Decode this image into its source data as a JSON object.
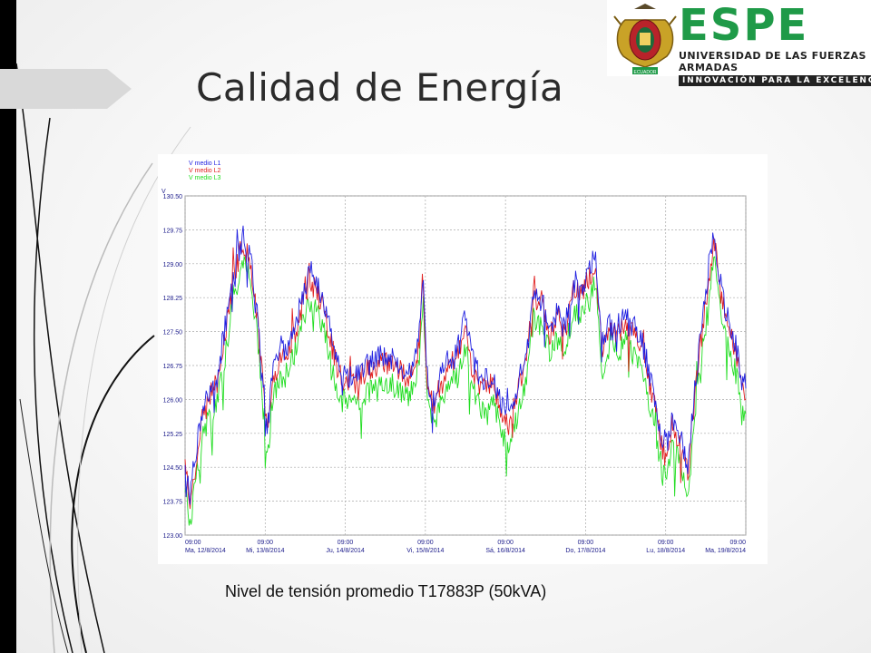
{
  "slide": {
    "title": "Calidad de Energía",
    "caption": "Nivel de tensión promedio T17883P (50kVA)"
  },
  "logo": {
    "word": "ESPE",
    "line1": "UNIVERSIDAD DE LAS FUERZAS ARMADAS",
    "line2": "INNOVACIÓN PARA LA EXCELENCIA",
    "emblem_text": "ECUADOR",
    "brand_color": "#1f9a48"
  },
  "chart_data": {
    "type": "line",
    "ylabel": "V",
    "ylim": [
      123.0,
      130.5
    ],
    "yticks": [
      "130.50",
      "129.75",
      "129.00",
      "128.25",
      "127.50",
      "126.75",
      "126.00",
      "125.25",
      "124.50",
      "123.75",
      "123.00"
    ],
    "xticks": [
      {
        "time": "09:00",
        "date": "Ma, 12/8/2014"
      },
      {
        "time": "09:00",
        "date": "Mi, 13/8/2014"
      },
      {
        "time": "09:00",
        "date": "Ju, 14/8/2014"
      },
      {
        "time": "09:00",
        "date": "Vi, 15/8/2014"
      },
      {
        "time": "09:00",
        "date": "Sá, 16/8/2014"
      },
      {
        "time": "09:00",
        "date": "Do, 17/8/2014"
      },
      {
        "time": "09:00",
        "date": "Lu, 18/8/2014"
      },
      {
        "time": "09:00",
        "date": "Ma, 19/8/2014"
      }
    ],
    "grid": true,
    "legend_position": "top-left",
    "series": [
      {
        "name": "V medio L1",
        "color": "#1f1fe0",
        "offset": 0.0
      },
      {
        "name": "V medio L2",
        "color": "#e02020",
        "offset": -0.15
      },
      {
        "name": "V medio L3",
        "color": "#22dd22",
        "offset": -0.6
      }
    ],
    "profile": [
      [
        0.0,
        124.8
      ],
      [
        0.06,
        123.9
      ],
      [
        0.12,
        124.6
      ],
      [
        0.2,
        125.6
      ],
      [
        0.3,
        126.2
      ],
      [
        0.4,
        126.5
      ],
      [
        0.5,
        127.6
      ],
      [
        0.6,
        128.8
      ],
      [
        0.72,
        129.6
      ],
      [
        0.82,
        129.2
      ],
      [
        0.9,
        128.0
      ],
      [
        0.98,
        126.3
      ],
      [
        1.03,
        125.3
      ],
      [
        1.08,
        126.4
      ],
      [
        1.15,
        126.9
      ],
      [
        1.25,
        127.1
      ],
      [
        1.4,
        127.8
      ],
      [
        1.55,
        128.8
      ],
      [
        1.65,
        128.5
      ],
      [
        1.75,
        128.0
      ],
      [
        1.85,
        127.2
      ],
      [
        1.95,
        126.6
      ],
      [
        2.1,
        126.5
      ],
      [
        2.3,
        126.8
      ],
      [
        2.45,
        127.0
      ],
      [
        2.6,
        126.9
      ],
      [
        2.8,
        126.6
      ],
      [
        2.92,
        127.3
      ],
      [
        2.97,
        128.9
      ],
      [
        3.02,
        126.5
      ],
      [
        3.1,
        126.0
      ],
      [
        3.25,
        126.8
      ],
      [
        3.4,
        127.1
      ],
      [
        3.5,
        127.8
      ],
      [
        3.58,
        126.9
      ],
      [
        3.7,
        126.4
      ],
      [
        3.85,
        126.5
      ],
      [
        3.95,
        125.9
      ],
      [
        4.05,
        125.6
      ],
      [
        4.15,
        126.3
      ],
      [
        4.25,
        126.9
      ],
      [
        4.35,
        128.4
      ],
      [
        4.45,
        128.2
      ],
      [
        4.55,
        127.6
      ],
      [
        4.65,
        128.0
      ],
      [
        4.75,
        127.7
      ],
      [
        4.85,
        128.6
      ],
      [
        4.95,
        128.5
      ],
      [
        5.05,
        128.8
      ],
      [
        5.12,
        129.2
      ],
      [
        5.2,
        127.2
      ],
      [
        5.3,
        127.8
      ],
      [
        5.4,
        127.6
      ],
      [
        5.5,
        127.9
      ],
      [
        5.6,
        127.6
      ],
      [
        5.72,
        127.2
      ],
      [
        5.85,
        126.1
      ],
      [
        5.95,
        125.1
      ],
      [
        6.0,
        124.9
      ],
      [
        6.08,
        125.6
      ],
      [
        6.18,
        125.2
      ],
      [
        6.28,
        124.5
      ],
      [
        6.38,
        126.6
      ],
      [
        6.48,
        128.0
      ],
      [
        6.55,
        129.0
      ],
      [
        6.6,
        129.7
      ],
      [
        6.68,
        128.6
      ],
      [
        6.75,
        127.9
      ],
      [
        6.82,
        127.6
      ],
      [
        6.9,
        127.0
      ],
      [
        6.95,
        126.3
      ],
      [
        7.0,
        126.4
      ]
    ]
  }
}
